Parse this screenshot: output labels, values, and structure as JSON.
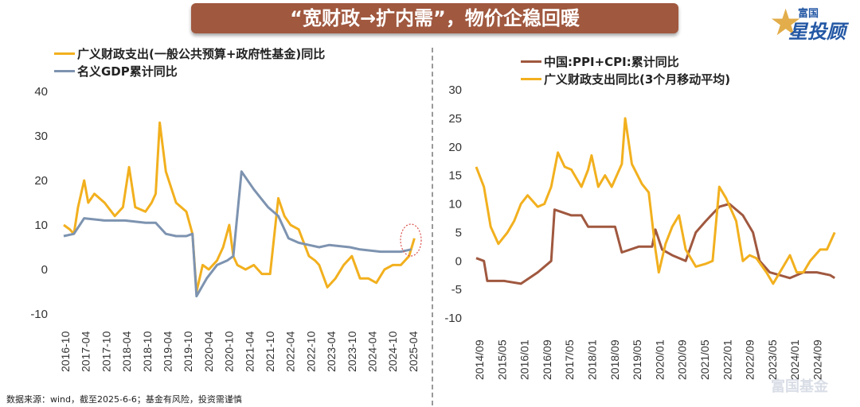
{
  "title": "“宽财政→扩内需”，物价企稳回暖",
  "logo": {
    "line1": "富国",
    "line2": "星投顾"
  },
  "watermark": "富国基金",
  "source": "数据来源：wind，截至2025-6-6；基金有风险，投资需谨慎",
  "colors": {
    "yellow": "#f2b01e",
    "blue": "#7d93b0",
    "brown": "#a0583f"
  },
  "chart_data": [
    {
      "type": "line",
      "yticks": [
        -10,
        0,
        10,
        20,
        30,
        40
      ],
      "ylim": [
        -10,
        40
      ],
      "xticks": [
        "2016-10",
        "2017-04",
        "2017-10",
        "2018-04",
        "2018-10",
        "2019-04",
        "2019-10",
        "2020-04",
        "2020-10",
        "2021-04",
        "2021-10",
        "2022-04",
        "2022-10",
        "2023-04",
        "2023-10",
        "2024-04",
        "2024-10",
        "2025-04"
      ],
      "xlim": [
        2016.75,
        2025.42
      ],
      "series": [
        {
          "name": "广义财政支出(一般公共预算+政府性基金)同比",
          "color": "#f2b01e",
          "x": [
            2016.75,
            2016.9,
            2017.0,
            2017.1,
            2017.25,
            2017.35,
            2017.5,
            2017.75,
            2018.0,
            2018.2,
            2018.35,
            2018.5,
            2018.75,
            2018.9,
            2019.0,
            2019.1,
            2019.25,
            2019.5,
            2019.75,
            2019.9,
            2020.0,
            2020.15,
            2020.3,
            2020.5,
            2020.65,
            2020.8,
            2020.9,
            2021.0,
            2021.2,
            2021.4,
            2021.6,
            2021.8,
            2022.0,
            2022.15,
            2022.3,
            2022.5,
            2022.75,
            2022.9,
            2023.0,
            2023.2,
            2023.4,
            2023.6,
            2023.8,
            2024.0,
            2024.2,
            2024.4,
            2024.6,
            2024.8,
            2025.0,
            2025.2,
            2025.33
          ],
          "y": [
            10,
            9,
            8,
            14,
            20,
            15,
            17,
            15,
            12,
            14,
            23,
            14,
            13,
            15,
            17,
            33,
            22,
            15,
            13,
            8,
            -5,
            1,
            0,
            2,
            5,
            10,
            3,
            1,
            0,
            1,
            -1,
            -1,
            16,
            12,
            10,
            9,
            3,
            2,
            1,
            -4,
            -2,
            1,
            3,
            -2,
            -2,
            -3,
            0,
            1,
            1,
            3,
            7
          ]
        },
        {
          "name": "名义GDP累计同比",
          "color": "#7d93b0",
          "x": [
            2016.75,
            2017.0,
            2017.25,
            2017.75,
            2018.25,
            2018.75,
            2019.0,
            2019.25,
            2019.5,
            2019.75,
            2019.9,
            2020.0,
            2020.25,
            2020.5,
            2020.75,
            2020.9,
            2021.1,
            2021.4,
            2021.75,
            2022.0,
            2022.25,
            2022.5,
            2022.75,
            2023.0,
            2023.25,
            2023.75,
            2024.0,
            2024.5,
            2025.0,
            2025.25
          ],
          "y": [
            7.5,
            8,
            11.5,
            11,
            11,
            10.5,
            10.5,
            8,
            7.5,
            7.5,
            8,
            -6,
            -2,
            1,
            2,
            3,
            22,
            18,
            14,
            12,
            7,
            6,
            5.5,
            5,
            5.5,
            5,
            4.5,
            4,
            4,
            4.5
          ]
        }
      ]
    },
    {
      "type": "line",
      "yticks": [
        -10,
        -5,
        0,
        5,
        10,
        15,
        20,
        25,
        30
      ],
      "ylim": [
        -10,
        30
      ],
      "xticks": [
        "2014/09",
        "2015/05",
        "2016/01",
        "2016/09",
        "2017/05",
        "2018/01",
        "2018/09",
        "2019/05",
        "2020/01",
        "2020/09",
        "2021/05",
        "2022/01",
        "2022/09",
        "2023/05",
        "2024/01",
        "2024/09"
      ],
      "xlim": [
        2014.67,
        2025.42
      ],
      "series": [
        {
          "name": "中国:PPI+CPI:累计同比",
          "color": "#a0583f",
          "x": [
            2014.67,
            2014.9,
            2015.0,
            2015.5,
            2016.0,
            2016.5,
            2016.9,
            2017.0,
            2017.5,
            2017.8,
            2018.0,
            2018.5,
            2018.8,
            2019.0,
            2019.5,
            2019.9,
            2020.0,
            2020.2,
            2020.5,
            2020.9,
            2021.2,
            2021.5,
            2021.9,
            2022.2,
            2022.6,
            2022.9,
            2023.1,
            2023.4,
            2023.7,
            2024.0,
            2024.4,
            2024.8,
            2025.2,
            2025.33
          ],
          "y": [
            0.5,
            0,
            -3.5,
            -3.5,
            -4,
            -2,
            0,
            9,
            8,
            8,
            6,
            6,
            6,
            1.5,
            2.5,
            2.5,
            5.5,
            2,
            1,
            0,
            5,
            7,
            9.5,
            10,
            8,
            5,
            0,
            -2,
            -2.5,
            -3,
            -2,
            -2,
            -2.5,
            -3
          ]
        },
        {
          "name": "广义财政支出同比(3个月移动平均)",
          "color": "#f2b01e",
          "x": [
            2014.67,
            2014.9,
            2015.1,
            2015.33,
            2015.6,
            2015.8,
            2016.0,
            2016.2,
            2016.5,
            2016.7,
            2016.9,
            2017.1,
            2017.3,
            2017.5,
            2017.8,
            2018.0,
            2018.1,
            2018.3,
            2018.5,
            2018.7,
            2019.0,
            2019.1,
            2019.3,
            2019.6,
            2019.8,
            2020.0,
            2020.1,
            2020.3,
            2020.5,
            2020.7,
            2020.9,
            2021.2,
            2021.5,
            2021.7,
            2021.9,
            2022.1,
            2022.4,
            2022.6,
            2022.8,
            2023.0,
            2023.3,
            2023.5,
            2023.8,
            2024.0,
            2024.2,
            2024.4,
            2024.6,
            2024.9,
            2025.1,
            2025.33
          ],
          "y": [
            16.5,
            13,
            6,
            3,
            5,
            7,
            10,
            11.5,
            9.5,
            10,
            13,
            19,
            16.5,
            16,
            13,
            16,
            18.5,
            13,
            15,
            13,
            17,
            25,
            17,
            13.5,
            12,
            2,
            -2,
            3,
            6,
            8,
            2,
            -1,
            -0.5,
            0,
            13,
            11,
            7,
            0,
            1,
            0.5,
            -2,
            -4,
            -1,
            1,
            -2,
            -2,
            0,
            2,
            2,
            5
          ]
        }
      ]
    }
  ]
}
